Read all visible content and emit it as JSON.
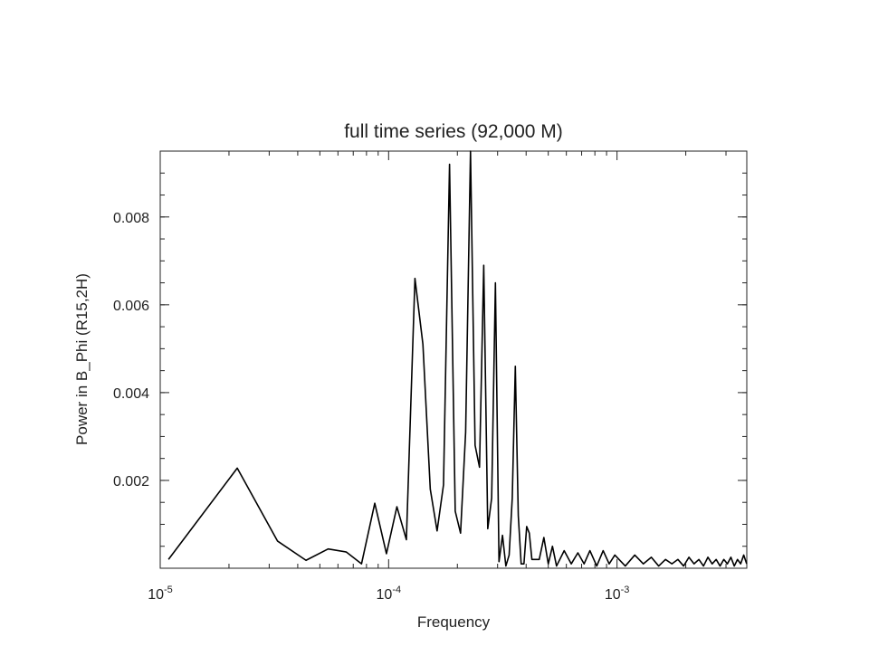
{
  "chart_data": {
    "type": "line",
    "title": "full time series (92,000 M)",
    "x_label": "Frequency",
    "y_label": "Power in B_Phi (R15,2H)",
    "xscale": "log",
    "color": "#000000",
    "xlim": [
      1e-05,
      0.0037
    ],
    "ylim": [
      0,
      0.0095
    ],
    "xticks": [
      {
        "value": 1e-05,
        "label": "10",
        "exponent": "-5"
      },
      {
        "value": 0.0001,
        "label": "10",
        "exponent": "-4"
      },
      {
        "value": 0.001,
        "label": "10",
        "exponent": "-3"
      }
    ],
    "yticks": [
      0.002,
      0.004,
      0.006,
      0.008
    ],
    "x": [
      1.087e-05,
      2.174e-05,
      3.261e-05,
      4.348e-05,
      5.435e-05,
      6.522e-05,
      7.609e-05,
      8.696e-05,
      9.783e-05,
      0.0001087,
      0.0001196,
      0.0001304,
      0.0001413,
      0.0001522,
      0.000163,
      0.0001739,
      0.0001848,
      0.0001957,
      0.0002065,
      0.0002174,
      0.0002283,
      0.0002391,
      0.00025,
      0.0002609,
      0.0002717,
      0.0002826,
      0.0002935,
      0.0003043,
      0.0003152,
      0.0003261,
      0.000337,
      0.0003478,
      0.0003587,
      0.0003696,
      0.0003804,
      0.0003913,
      0.0004022,
      0.000413,
      0.0004239,
      0.0004348,
      0.0004565,
      0.0004783,
      0.0005,
      0.0005217,
      0.0005435,
      0.000587,
      0.0006304,
      0.0006739,
      0.0007174,
      0.0007609,
      0.0008152,
      0.0008696,
      0.0009239,
      0.0009783,
      0.001087,
      0.001196,
      0.001304,
      0.001413,
      0.001522,
      0.00163,
      0.001739,
      0.001848,
      0.001957,
      0.002065,
      0.002174,
      0.002283,
      0.002391,
      0.0025,
      0.002609,
      0.002717,
      0.002826,
      0.002935,
      0.003043,
      0.003152,
      0.003261,
      0.00337,
      0.003478,
      0.003587,
      0.003696
    ],
    "values": [
      0.0002,
      0.00228,
      0.00062,
      0.00018,
      0.00044,
      0.00037,
      0.0001,
      0.00148,
      0.00033,
      0.0014,
      0.00065,
      0.0066,
      0.0051,
      0.0018,
      0.00085,
      0.0019,
      0.0092,
      0.0013,
      0.0008,
      0.0031,
      0.0095,
      0.0028,
      0.0023,
      0.0069,
      0.0009,
      0.0016,
      0.0065,
      0.00015,
      0.00075,
      5e-05,
      0.0003,
      0.0016,
      0.0046,
      0.0012,
      0.0001,
      0.0001,
      0.00095,
      0.0008,
      0.0002,
      0.0002,
      0.0002,
      0.0007,
      0.0001,
      0.0005,
      5e-05,
      0.0004,
      0.0001,
      0.00035,
      0.0001,
      0.0004,
      5e-05,
      0.0004,
      0.0001,
      0.0003,
      5e-05,
      0.0003,
      0.0001,
      0.00025,
      5e-05,
      0.0002,
      0.0001,
      0.0002,
      5e-05,
      0.00025,
      0.0001,
      0.0002,
      5e-05,
      0.00025,
      0.0001,
      0.0002,
      5e-05,
      0.0002,
      0.0001,
      0.00025,
      5e-05,
      0.0002,
      0.0001,
      0.0003,
      0.0001
    ]
  }
}
